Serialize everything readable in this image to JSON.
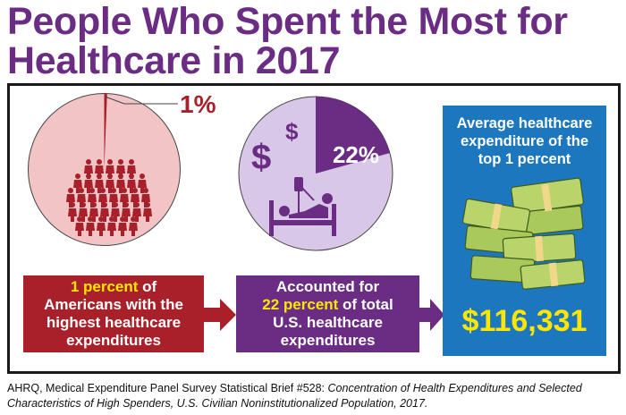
{
  "title": {
    "line1": "People Who Spent the Most for",
    "line2": "Healthcare in 2017"
  },
  "left": {
    "pie_percent": "1%",
    "box_highlight": "1 percent",
    "box_text_after_highlight": " of",
    "box_line2": "Americans with the",
    "box_line3": "highest healthcare",
    "box_line4": "expenditures",
    "pie_share": 0.01,
    "icons": [
      "people-crowd-icon"
    ]
  },
  "middle": {
    "pie_percent": "22%",
    "box_line1": "Accounted for",
    "box_highlight": "22 percent",
    "box_text_after_highlight": " of total",
    "box_line3": "U.S. healthcare",
    "box_line4": "expenditures",
    "pie_share": 0.22,
    "icons": [
      "dollar-sign-icon",
      "patient-bed-icon"
    ]
  },
  "right": {
    "title_line1": "Average healthcare",
    "title_line2": "expenditure of the",
    "title_line3": "top 1 percent",
    "amount": "$116,331",
    "icons": [
      "money-stack-icon"
    ]
  },
  "citation": {
    "plain": "AHRQ, Medical Expenditure Panel Survey Statistical Brief #528: ",
    "italic": "Concentration of Health Expenditures and Selected Characteristics of High Spenders, U.S. Civilian Noninstitutionalized Population, 2017."
  },
  "colors": {
    "title_purple": "#6b2c83",
    "red": "#a8202a",
    "pink_pie": "#f2c4c6",
    "lavender_pie": "#d8c7e6",
    "blue": "#1c77bf",
    "yellow": "#ffe600"
  }
}
